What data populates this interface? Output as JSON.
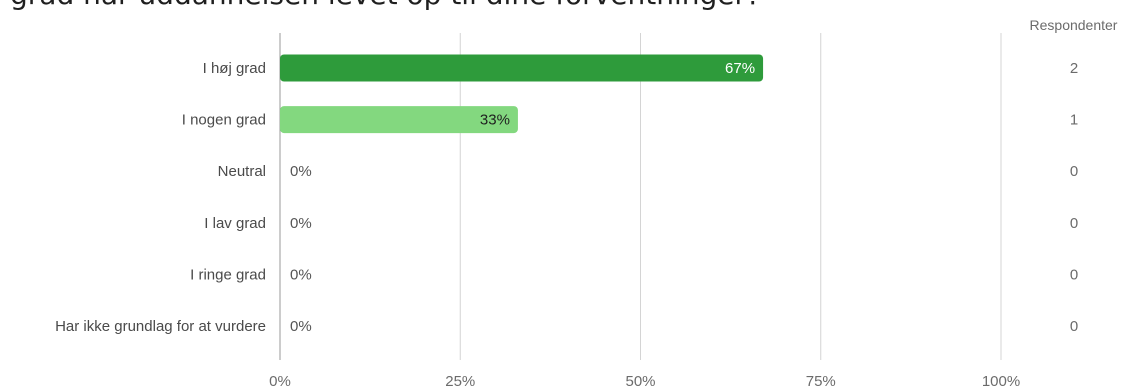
{
  "question": {
    "text": "grad har uddannelsen levet op til dine forventninger?"
  },
  "respondents_header": "Respondenter",
  "colors": {
    "bar_primary": "#2e9b3b",
    "bar_secondary": "#83d87f",
    "grid": "#d4d4d4",
    "axis": "#9a9a9a"
  },
  "chart_data": {
    "type": "bar",
    "orientation": "horizontal",
    "categories": [
      "I høj grad",
      "I nogen grad",
      "Neutral",
      "I lav grad",
      "I ringe grad",
      "Har ikke grundlag for at vurdere"
    ],
    "values": [
      67,
      33,
      0,
      0,
      0,
      0
    ],
    "value_labels": [
      "67%",
      "33%",
      "0%",
      "0%",
      "0%",
      "0%"
    ],
    "respondents": [
      2,
      1,
      0,
      0,
      0,
      0
    ],
    "xlim": [
      0,
      100
    ],
    "xticks": [
      0,
      25,
      50,
      75,
      100
    ],
    "xtick_labels": [
      "0%",
      "25%",
      "50%",
      "75%",
      "100%"
    ],
    "grid": true,
    "xlabel": "",
    "ylabel": ""
  }
}
